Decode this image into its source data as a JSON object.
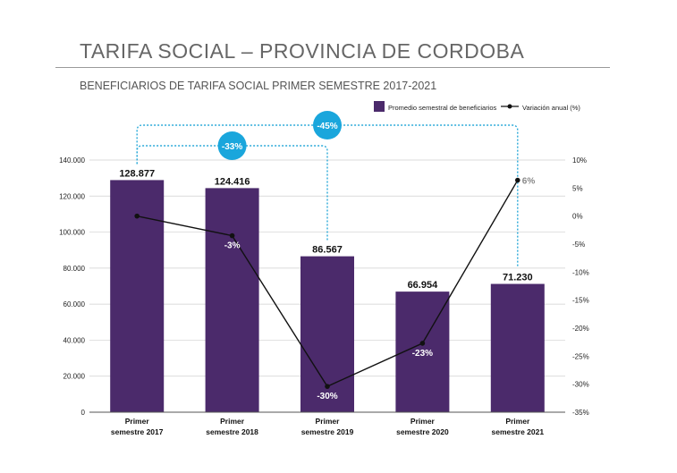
{
  "header": {
    "title": "TARIFA SOCIAL – PROVINCIA DE CORDOBA",
    "subtitle": "BENEFICIARIOS DE TARIFA SOCIAL PRIMER SEMESTRE 2017-2021"
  },
  "colors": {
    "bar": "#4b2a6b",
    "line": "#111111",
    "bracket": "#2aa9d8",
    "badge": "#1aa6dc",
    "grid": "#cfcfcf"
  },
  "chart_data": {
    "type": "bar",
    "categories": [
      [
        "Primer",
        "semestre 2017"
      ],
      [
        "Primer",
        "semestre 2018"
      ],
      [
        "Primer",
        "semestre 2019"
      ],
      [
        "Primer",
        "semestre 2020"
      ],
      [
        "Primer",
        "semestre 2021"
      ]
    ],
    "series": [
      {
        "name": "Promedio semestral de beneficiarios",
        "type": "bar",
        "axis": "left",
        "values": [
          128877,
          124416,
          86567,
          66954,
          71230
        ],
        "labels": [
          "128.877",
          "124.416",
          "86.567",
          "66.954",
          "71.230"
        ]
      },
      {
        "name": "Variación anual (%)",
        "type": "line",
        "axis": "right",
        "values": [
          0,
          -3.5,
          -30.4,
          -22.7,
          6.4
        ],
        "labels": [
          "",
          "-3%",
          "-30%",
          "-23%",
          "6%"
        ]
      }
    ],
    "left_axis": {
      "ylim": [
        0,
        140000
      ],
      "ticks": [
        0,
        20000,
        40000,
        60000,
        80000,
        100000,
        120000,
        140000
      ],
      "tick_labels": [
        "0",
        "20.000",
        "40.000",
        "60.000",
        "80.000",
        "100.000",
        "120.000",
        "140.000"
      ]
    },
    "right_axis": {
      "ylim": [
        -35,
        10
      ],
      "ticks": [
        10,
        5,
        0,
        -5,
        -10,
        -15,
        -20,
        -25,
        -30,
        -35
      ],
      "tick_labels": [
        "10%",
        "5%",
        "0%",
        "-5%",
        "-10%",
        "-15%",
        "-20%",
        "-25%",
        "-30%",
        "-35%"
      ]
    },
    "grid": true,
    "legend": "top-right",
    "annotations": [
      {
        "from": 0,
        "to": 2,
        "label": "-33%"
      },
      {
        "from": 0,
        "to": 4,
        "label": "-45%"
      }
    ]
  }
}
